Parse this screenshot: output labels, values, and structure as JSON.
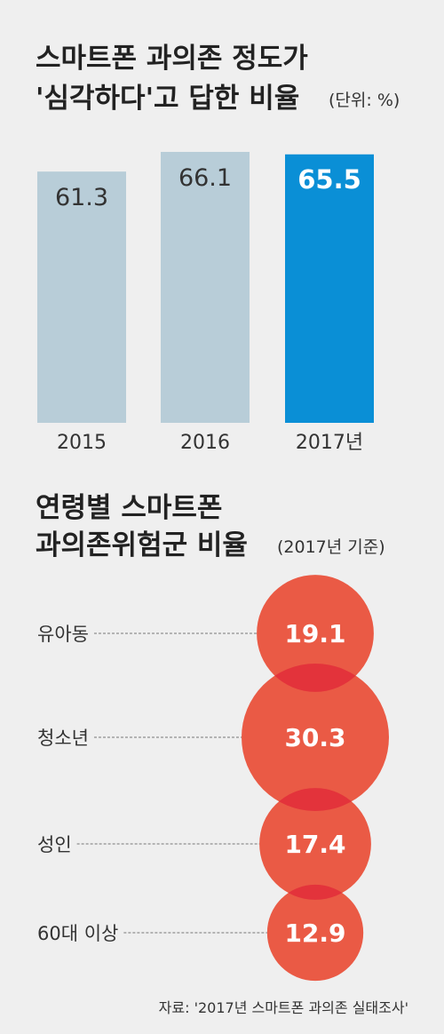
{
  "chart_data": [
    {
      "type": "bar",
      "title_line1": "스마트폰 과의존 정도가",
      "title_line2": "'심각하다'고 답한 비율",
      "unit": "(단위: %)",
      "categories": [
        "2015",
        "2016",
        "2017년"
      ],
      "values": [
        61.3,
        66.1,
        65.5
      ],
      "value_labels": [
        "61.3",
        "66.1",
        "65.5"
      ],
      "highlight_index": 2,
      "colors": {
        "bar": "#b8cdd8",
        "highlight": "#0a8fd6"
      }
    },
    {
      "type": "scatter",
      "title_line1": "연령별 스마트폰",
      "title_line2": "과의존위험군 비율",
      "unit": "(2017년 기준)",
      "categories": [
        "유아동",
        "청소년",
        "성인",
        "60대 이상"
      ],
      "values": [
        19.1,
        30.3,
        17.4,
        12.9
      ],
      "value_labels": [
        "19.1",
        "30.3",
        "17.4",
        "12.9"
      ],
      "colors": {
        "bubble": "#ea5a45",
        "overlap": "#e3333b"
      }
    }
  ],
  "source": "자료: '2017년 스마트폰 과의존 실태조사'"
}
